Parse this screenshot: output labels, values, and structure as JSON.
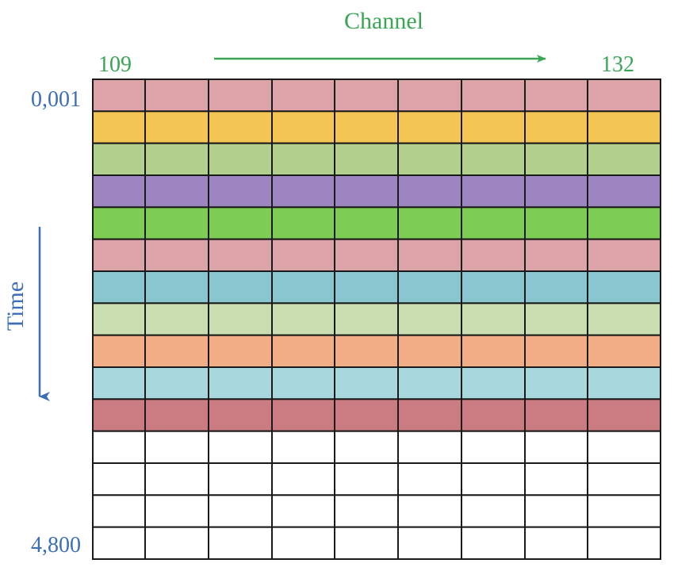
{
  "channel_axis": {
    "title": "Channel",
    "start_label": "109",
    "end_label": "132",
    "color": "#3aa655"
  },
  "time_axis": {
    "title": "Time",
    "start_label": "0,001",
    "end_label": "4,800",
    "color": "#3d6fb5"
  },
  "grid": {
    "columns": 9,
    "rows": 15,
    "line_color": "#1a1a1a",
    "row_fills": [
      "#dca3a8",
      "#f3c653",
      "#b3cf8e",
      "#9d86bf",
      "#7dcc53",
      "#dca3a8",
      "#89c6cf",
      "#c9ddb0",
      "#f0ad86",
      "#a9d7de",
      "#cb7b82",
      "#ffffff",
      "#ffffff",
      "#ffffff",
      "#ffffff"
    ]
  }
}
